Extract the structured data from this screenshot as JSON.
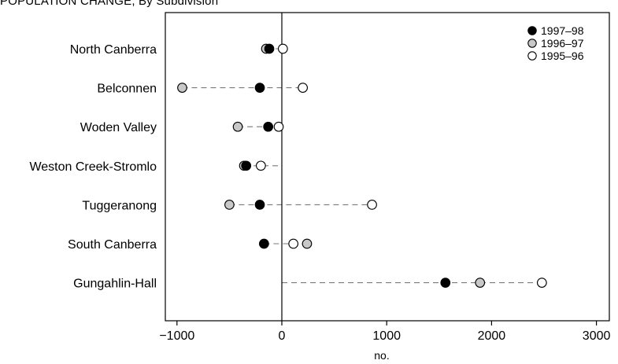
{
  "chart_data": {
    "type": "dot",
    "title": "POPULATION CHANGE, By Subdivision",
    "xlabel": "no.",
    "ylabel": "",
    "xlim": [
      -1100,
      3000
    ],
    "xticks": [
      -1000,
      0,
      1000,
      2000,
      3000
    ],
    "xtick_labels": [
      "−1000",
      "0",
      "1000",
      "2000",
      "3000"
    ],
    "categories": [
      "North Canberra",
      "Belconnen",
      "Woden Valley",
      "Weston Creek-Stromlo",
      "Tuggeranong",
      "South Canberra",
      "Gungahlin-Hall"
    ],
    "series": [
      {
        "name": "1995–96",
        "values": [
          10,
          200,
          -30,
          -200,
          860,
          110,
          2480
        ]
      },
      {
        "name": "1996–97",
        "values": [
          -150,
          -950,
          -420,
          -360,
          -500,
          240,
          1890
        ]
      },
      {
        "name": "1997–98",
        "values": [
          -120,
          -210,
          -130,
          -340,
          -210,
          -170,
          1560
        ]
      }
    ],
    "legend_order": [
      "1997–98",
      "1996–97",
      "1995–96"
    ],
    "legend_position": "top-right",
    "grid": false,
    "series_colors": {
      "1995–96": "#ffffff",
      "1996–97": "#c8c8c8",
      "1997–98": "#000000"
    },
    "connector": "dashed"
  }
}
